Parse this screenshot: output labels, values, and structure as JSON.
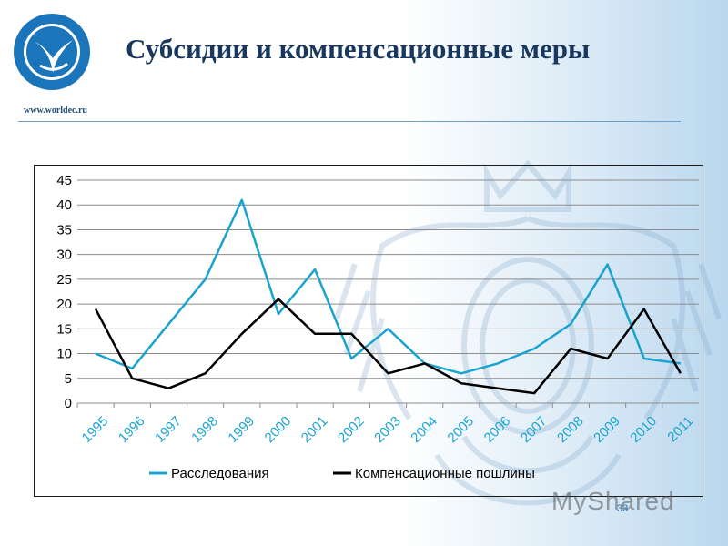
{
  "header": {
    "site_url": "www.worldec.ru",
    "title": "Субсидии и компенсационные меры"
  },
  "footer": {
    "page_number": "33",
    "watermark": "MyShared"
  },
  "colors": {
    "series_1": "#1aa3cf",
    "series_2": "#000000",
    "title": "#17375e",
    "grid": "#8c8c8c"
  },
  "chart_data": {
    "type": "line",
    "title": "",
    "xlabel": "",
    "ylabel": "",
    "x": [
      "1995",
      "1996",
      "1997",
      "1998",
      "1999",
      "2000",
      "2001",
      "2002",
      "2003",
      "2004",
      "2005",
      "2006",
      "2007",
      "2008",
      "2009",
      "2010",
      "2011"
    ],
    "ylim": [
      0,
      45
    ],
    "yticks": [
      0,
      5,
      10,
      15,
      20,
      25,
      30,
      35,
      40,
      45
    ],
    "grid": true,
    "legend_position": "bottom",
    "series": [
      {
        "name": "Расследования",
        "color": "#1aa3cf",
        "values": [
          10,
          7,
          16,
          25,
          41,
          18,
          27,
          9,
          15,
          8,
          6,
          8,
          11,
          16,
          28,
          9,
          8
        ]
      },
      {
        "name": "Компенсационные пошлины",
        "color": "#000000",
        "values": [
          19,
          5,
          3,
          6,
          14,
          21,
          14,
          14,
          6,
          8,
          4,
          3,
          2,
          11,
          9,
          19,
          6
        ]
      }
    ]
  }
}
